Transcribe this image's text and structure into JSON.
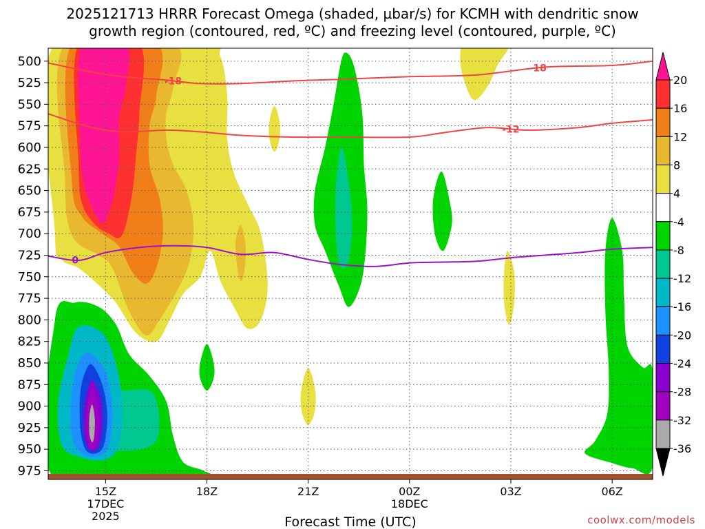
{
  "header": {
    "title_line1": "2025121713 HRRR Forecast Omega (shaded, µbar/s) for KCMH with dendritic snow",
    "title_line2": "growth region (contoured, red, ºC) and freezing level (contoured, purple, ºC)"
  },
  "credit": "coolwx.com/models",
  "chart_data": {
    "type": "time-height cross section (filled contour)",
    "title": "2025121713 HRRR Forecast Omega (shaded, µbar/s) for KCMH with dendritic snow growth region (contoured, red, ºC) and freezing level (contoured, purple, ºC)",
    "xlabel": "Forecast Time (UTC)",
    "ylabel": "",
    "x_range_hours_utc": [
      13.3,
      31.2
    ],
    "y_range_hpa": [
      985,
      485
    ],
    "y_ticks": [
      500,
      525,
      550,
      575,
      600,
      625,
      650,
      675,
      700,
      725,
      750,
      775,
      800,
      825,
      850,
      875,
      900,
      925,
      950,
      975
    ],
    "x_ticks": [
      {
        "hour": 15,
        "label": "15Z",
        "sub": [
          "17DEC",
          "2025"
        ]
      },
      {
        "hour": 18,
        "label": "18Z",
        "sub": []
      },
      {
        "hour": 21,
        "label": "21Z",
        "sub": []
      },
      {
        "hour": 24,
        "label": "00Z",
        "sub": [
          "18DEC"
        ]
      },
      {
        "hour": 27,
        "label": "03Z",
        "sub": []
      },
      {
        "hour": 30,
        "label": "06Z",
        "sub": []
      }
    ],
    "grid": true,
    "colorbar": {
      "levels": [
        20,
        16,
        12,
        8,
        4,
        -4,
        -8,
        -12,
        -16,
        -20,
        -24,
        -28,
        -32,
        -36
      ],
      "colors": [
        "#ff1493",
        "#ff3030",
        "#f07f1a",
        "#e8b830",
        "#e8e040",
        "#ffffff",
        "#00d400",
        "#00c890",
        "#00b8c8",
        "#1e90ff",
        "#1040e0",
        "#8a00d0",
        "#a000c0",
        "#aaaaaa",
        "#000000"
      ]
    },
    "series": [
      {
        "name": "-18 °C isotherm",
        "color": "#ef4444",
        "label": "-18",
        "x": [
          13.3,
          14.5,
          15.5,
          16.8,
          17.8,
          19,
          20.5,
          22,
          24,
          26,
          28,
          30,
          31.2
        ],
        "y": [
          502,
          512,
          518,
          522,
          526,
          526,
          523,
          521,
          518,
          516,
          507,
          505,
          500
        ]
      },
      {
        "name": "-12 °C isotherm",
        "color": "#ef4444",
        "label": "-12",
        "x": [
          13.3,
          14.5,
          15.5,
          16.8,
          17.8,
          19,
          20.5,
          22,
          24,
          25,
          26.3,
          27.5,
          29,
          30,
          31.2
        ],
        "y": [
          561,
          576,
          582,
          580,
          582,
          586,
          588,
          588,
          588,
          583,
          577,
          580,
          577,
          572,
          568
        ]
      },
      {
        "name": "0 °C freezing level",
        "color": "#9b12c8",
        "label": "0",
        "x": [
          13.3,
          14.2,
          15,
          16,
          17,
          18,
          19,
          20,
          21,
          22,
          23,
          24,
          25,
          26,
          27,
          28,
          29,
          30,
          31.2
        ],
        "y": [
          726,
          731,
          722,
          716,
          714,
          716,
          724,
          722,
          730,
          736,
          738,
          734,
          733,
          732,
          728,
          725,
          722,
          718,
          716
        ]
      }
    ],
    "shaded_regions": [
      {
        "range": "4 to 8",
        "description": "broad upward motion area 13.5Z-19.5Z, 485-825 hPa; small cells near 20Z 555-600 hPa, 21Z 860-920 hPa, 02-03Z 485-545 hPa, 03Z 725-805 hPa"
      },
      {
        "range": "8 to 12",
        "description": "13.8Z-17Z, 485-820 hPa"
      },
      {
        "range": "12 to 16",
        "description": "14Z-16.5Z, 485-760 hPa"
      },
      {
        "range": "16 to 20",
        "description": "14.2Z-16Z, 485-700 hPa"
      },
      {
        "range": "above 20",
        "description": "14.3Z-15.6Z, 485-680 hPa"
      },
      {
        "range": "-4 to -8",
        "description": "downward motion: 21.5Z-22.5Z 490-780 hPa; 13.5Z-17.8Z 780-980 hPa; 18Z 830-880 hPa; 00.8Z 630-715 hPa; 04.8Z-06.8Z 690-970 hPa"
      },
      {
        "range": "-8 to -12",
        "description": "22Z 600-740 hPa; 14.5Z-16.5Z 880-940 hPa"
      },
      {
        "range": "below -12",
        "description": "14.2Z-15.5Z, 800-960 hPa, minimum about -36 near 14.6Z 915 hPa"
      }
    ]
  }
}
